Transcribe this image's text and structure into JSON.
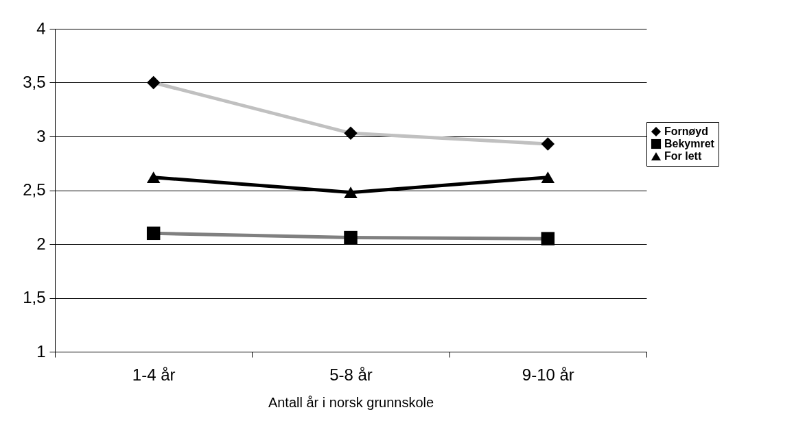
{
  "chart_data": {
    "type": "line",
    "xlabel": "Antall år i norsk grunnskole",
    "categories": [
      "1-4 år",
      "5-8 år",
      "9-10 år"
    ],
    "series": [
      {
        "name": "Fornøyd",
        "color": "#c0c0c0",
        "marker": "diamond",
        "values": [
          3.5,
          3.03,
          2.93
        ]
      },
      {
        "name": "Bekymret",
        "color": "#808080",
        "marker": "square",
        "values": [
          2.1,
          2.06,
          2.05
        ]
      },
      {
        "name": "For lett",
        "color": "#000000",
        "marker": "triangle",
        "values": [
          2.62,
          2.48,
          2.62
        ]
      }
    ],
    "ylim": [
      1,
      4
    ],
    "yticks": [
      1,
      {
        "value": 1.5,
        "label": "1,5"
      },
      2,
      {
        "value": 2.5,
        "label": "2,5"
      },
      3,
      {
        "value": 3.5,
        "label": "3,5"
      },
      4
    ],
    "grid": "y",
    "legend": "right"
  }
}
